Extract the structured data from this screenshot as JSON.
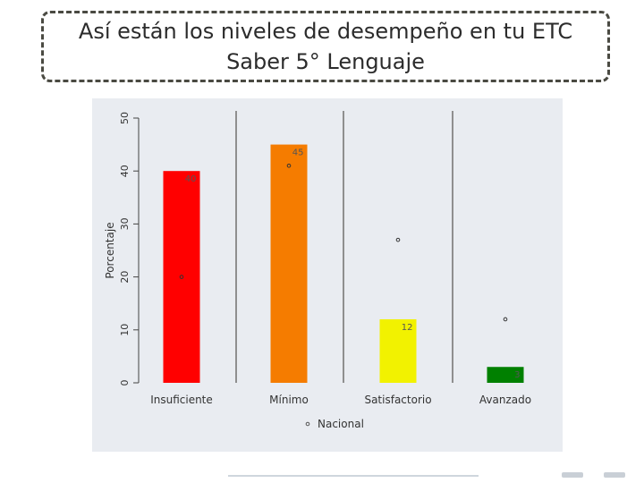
{
  "title": {
    "line1": "Así están los niveles de desempeño en tu ETC",
    "line2": "Saber 5° Lenguaje"
  },
  "chart_data": {
    "type": "bar",
    "categories": [
      "Insuficiente",
      "Mínimo",
      "Satisfactorio",
      "Avanzado"
    ],
    "series": [
      {
        "values": [
          40,
          45,
          12,
          3
        ],
        "colors": [
          "#ff0000",
          "#f57c00",
          "#f2f200",
          "#008000"
        ]
      },
      {
        "name": "Nacional",
        "values": [
          20,
          41,
          27,
          12
        ]
      }
    ],
    "data_labels": [
      "40",
      "45",
      "12",
      "3"
    ],
    "ylabel": "Porcentaje",
    "ylim": [
      0,
      50
    ],
    "yticks": [
      "0",
      "10",
      "20",
      "30",
      "40",
      "50"
    ],
    "grid": "vertical separators between categories",
    "legend": {
      "position": "bottom",
      "entries": [
        "Nacional"
      ]
    }
  }
}
